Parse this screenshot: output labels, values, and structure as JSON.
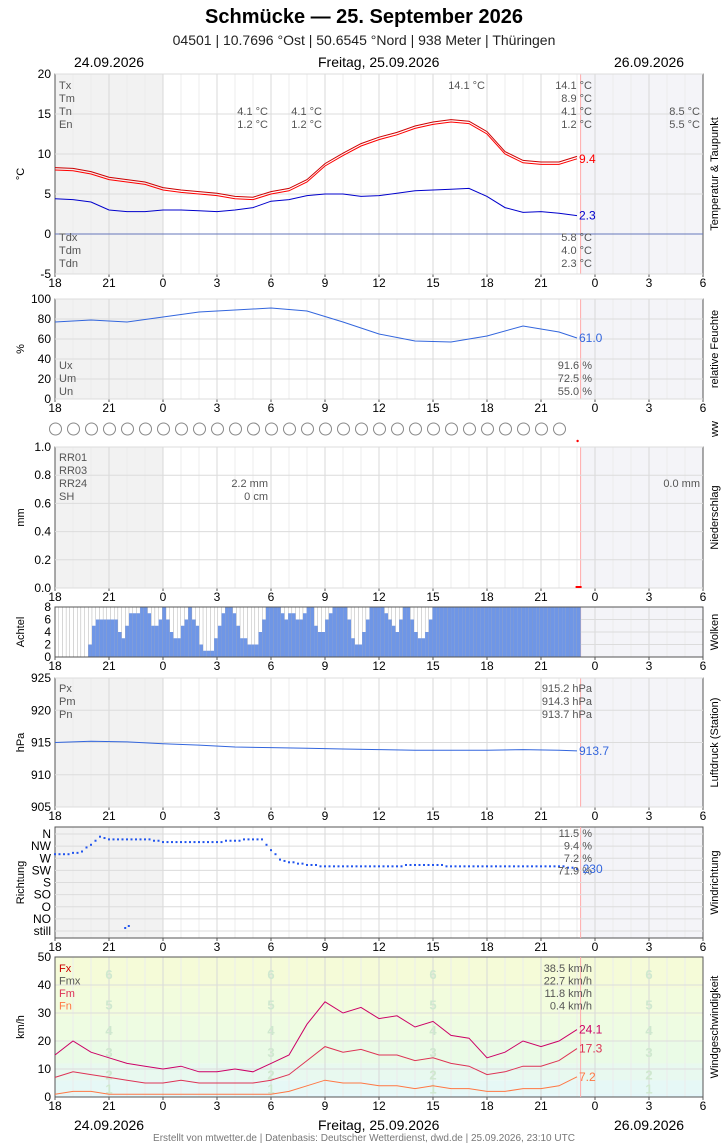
{
  "header": {
    "title": "Schmücke  —  25. September 2026",
    "subtitle": "04501  |  10.7696 °Ost  |  50.6545 °Nord  |  938 Meter  |  Thüringen"
  },
  "dates": {
    "prev": "24.09.2026",
    "current": "Freitag, 25.09.2026",
    "next": "26.09.2026"
  },
  "footer": "Erstellt von mtwetter.de | Datenbasis: Deutscher Wetterdienst, dwd.de | 25.09.2026, 23:10 UTC",
  "colors": {
    "red": "#ff0000",
    "darkred": "#cc0000",
    "blue": "#0000cc",
    "lightblue": "#3366dd",
    "magenta": "#cc0066",
    "cloud": "#6f96e6",
    "grid": "#dddddd",
    "nightbg": "#f3f3f3"
  },
  "chart_data": [
    {
      "id": "temperature",
      "type": "line",
      "ylabel": "°C",
      "side_label": "Temperatur & Taupunkt",
      "ylim": [
        -5,
        20
      ],
      "yticks": [
        "-5",
        "0",
        "5",
        "10",
        "15",
        "20"
      ],
      "xticks": [
        "18",
        "21",
        "0",
        "3",
        "6",
        "9",
        "12",
        "15",
        "18",
        "21",
        "0",
        "3",
        "6"
      ],
      "stats_left": [
        {
          "label": "Tx",
          "d1": "",
          "d2": "",
          "d3": "14.1 °C",
          "d4": "14.1 °C",
          "d5": ""
        },
        {
          "label": "Tm",
          "d1": "",
          "d2": "",
          "d3": "",
          "d4": "8.9 °C",
          "d5": ""
        },
        {
          "label": "Tn",
          "d1": "4.1 °C",
          "d2": "4.1 °C",
          "d3": "",
          "d4": "4.1 °C",
          "d5": "8.5 °C"
        },
        {
          "label": "En",
          "d1": "1.2 °C",
          "d2": "1.2 °C",
          "d3": "",
          "d4": "1.2 °C",
          "d5": "5.5 °C"
        }
      ],
      "stats_bottom": [
        {
          "label": "Tdx",
          "value": "5.8 °C"
        },
        {
          "label": "Tdm",
          "value": "4.0 °C"
        },
        {
          "label": "Tdn",
          "value": "2.3 °C"
        }
      ],
      "series": [
        {
          "name": "T",
          "color": "#ff0000",
          "last_label": "9.4",
          "x": [
            0,
            1,
            2,
            3,
            4,
            5,
            6,
            7,
            8,
            9,
            10,
            11,
            12,
            13,
            14,
            15,
            16,
            17,
            18,
            19,
            20,
            21,
            22,
            23,
            24,
            25,
            26,
            27,
            28,
            29
          ],
          "values": [
            8.0,
            7.9,
            7.5,
            6.8,
            6.5,
            6.2,
            5.5,
            5.2,
            5.0,
            4.8,
            4.4,
            4.3,
            5.0,
            5.4,
            6.5,
            8.5,
            9.8,
            11.0,
            11.8,
            12.4,
            13.2,
            13.7,
            14.0,
            13.8,
            12.5,
            10.0,
            8.9,
            8.7,
            8.7,
            9.4
          ]
        },
        {
          "name": "Td",
          "color": "#0000cc",
          "last_label": "2.3",
          "x": [
            0,
            1,
            2,
            3,
            4,
            5,
            6,
            7,
            8,
            9,
            10,
            11,
            12,
            13,
            14,
            15,
            16,
            17,
            18,
            19,
            20,
            21,
            22,
            23,
            24,
            25,
            26,
            27,
            28,
            29
          ],
          "values": [
            4.4,
            4.3,
            4.0,
            3.0,
            2.8,
            2.8,
            3.0,
            3.0,
            2.9,
            2.8,
            3.0,
            3.3,
            4.1,
            4.3,
            4.8,
            5.0,
            5.0,
            4.7,
            4.8,
            5.1,
            5.4,
            5.5,
            5.6,
            5.7,
            4.7,
            3.3,
            2.7,
            2.8,
            2.6,
            2.3
          ]
        }
      ]
    },
    {
      "id": "humidity",
      "type": "line",
      "ylabel": "%",
      "side_label": "relative Feuchte",
      "ylim": [
        0,
        100
      ],
      "yticks": [
        "0",
        "20",
        "40",
        "60",
        "80",
        "100"
      ],
      "stats": [
        {
          "label": "Ux",
          "value": "91.6 %"
        },
        {
          "label": "Um",
          "value": "72.5 %"
        },
        {
          "label": "Un",
          "value": "55.0 %"
        }
      ],
      "series": [
        {
          "name": "U",
          "color": "#3366dd",
          "last_label": "61.0",
          "x": [
            0,
            2,
            4,
            6,
            8,
            10,
            12,
            14,
            16,
            18,
            20,
            22,
            24,
            26,
            28,
            29
          ],
          "values": [
            77,
            79,
            77,
            82,
            87,
            89,
            91,
            88,
            77,
            65,
            58,
            57,
            63,
            73,
            67,
            61
          ]
        }
      ]
    },
    {
      "id": "ww",
      "type": "table",
      "side_label": "ww",
      "symbol_count": 29
    },
    {
      "id": "precip",
      "type": "bar",
      "ylabel": "mm",
      "side_label": "Niederschlag",
      "ylim": [
        0,
        1
      ],
      "yticks": [
        "0.0",
        "0.2",
        "0.4",
        "0.6",
        "0.8",
        "1.0"
      ],
      "stats": [
        {
          "label": "RR01",
          "value": ""
        },
        {
          "label": "RR03",
          "value": ""
        },
        {
          "label": "RR24",
          "value": "2.2 mm",
          "next": "0.0 mm"
        },
        {
          "label": "SH",
          "value": "0 cm"
        }
      ],
      "values": [
        0.0
      ]
    },
    {
      "id": "clouds",
      "type": "bar",
      "ylabel": "Achtel",
      "side_label": "Wolken",
      "ylim": [
        0,
        8
      ],
      "yticks": [
        "0",
        "2",
        "4",
        "6",
        "8"
      ],
      "values": [
        8,
        8,
        8,
        8,
        8,
        8,
        8,
        8,
        8,
        6,
        3,
        2,
        2,
        2,
        2,
        2,
        2,
        4,
        5,
        3,
        1,
        1,
        1,
        0,
        0,
        1,
        3,
        3,
        2,
        0,
        2,
        4,
        5,
        5,
        3,
        2,
        0,
        2,
        3,
        6,
        7,
        7,
        7,
        5,
        3,
        1,
        0,
        0,
        1,
        3,
        5,
        5,
        6,
        6,
        6,
        4,
        2,
        0,
        0,
        0,
        0,
        1,
        2,
        1,
        1,
        2,
        2,
        1,
        0,
        0,
        3,
        4,
        4,
        2,
        1,
        0,
        0,
        0,
        0,
        2,
        5,
        6,
        6,
        4,
        2,
        0,
        0,
        0,
        0,
        1,
        2,
        3,
        4,
        2,
        0,
        0,
        2,
        4,
        5,
        5,
        4,
        2,
        0,
        0,
        0,
        0,
        0,
        0,
        0,
        0,
        0,
        0,
        0,
        0,
        0,
        0,
        0,
        0,
        0,
        0,
        0,
        0,
        0,
        0,
        0,
        0,
        0,
        0,
        0,
        0,
        0,
        0,
        0,
        0,
        0,
        0,
        0,
        0,
        0,
        0,
        0,
        0
      ]
    },
    {
      "id": "pressure",
      "type": "line",
      "ylabel": "hPa",
      "side_label": "Luftdruck (Station)",
      "ylim": [
        905,
        925
      ],
      "yticks": [
        "905",
        "910",
        "915",
        "920",
        "925"
      ],
      "stats": [
        {
          "label": "Px",
          "value": "915.2 hPa"
        },
        {
          "label": "Pm",
          "value": "914.3 hPa"
        },
        {
          "label": "Pn",
          "value": "913.7 hPa"
        }
      ],
      "series": [
        {
          "name": "P",
          "color": "#3366dd",
          "last_label": "913.7",
          "x": [
            0,
            2,
            4,
            6,
            8,
            10,
            12,
            14,
            16,
            18,
            20,
            22,
            24,
            26,
            28,
            29
          ],
          "values": [
            915.0,
            915.2,
            915.1,
            914.8,
            914.6,
            914.3,
            914.2,
            914.1,
            914.0,
            913.9,
            913.8,
            913.8,
            913.8,
            913.9,
            913.8,
            913.7
          ]
        }
      ]
    },
    {
      "id": "winddir",
      "type": "scatter",
      "ylabel": "Richtung",
      "side_label": "Windrichtung",
      "ycats": [
        "N",
        "NW",
        "W",
        "SW",
        "S",
        "SO",
        "O",
        "NO",
        "still"
      ],
      "stats": [
        "11.5 %",
        "9.4 %",
        "7.2 %",
        "71.9 %"
      ],
      "last_label": "230",
      "x": [
        0,
        0.5,
        1,
        1.5,
        2,
        2.5,
        3,
        4,
        5,
        6,
        7,
        8,
        9,
        10,
        11,
        11.5,
        12,
        12.5,
        13,
        14,
        15,
        16,
        17,
        18,
        19,
        20,
        21,
        22,
        23,
        24,
        25,
        26,
        27,
        28,
        29
      ],
      "values": [
        283,
        285,
        288,
        295,
        320,
        350,
        340,
        340,
        340,
        330,
        330,
        330,
        330,
        335,
        340,
        340,
        300,
        265,
        255,
        245,
        240,
        240,
        240,
        240,
        240,
        245,
        245,
        240,
        240,
        240,
        240,
        240,
        240,
        240,
        230
      ]
    },
    {
      "id": "wind",
      "type": "line",
      "ylabel": "km/h",
      "side_label": "Windgeschwindigkeit",
      "ylim": [
        0,
        50
      ],
      "yticks": [
        "0",
        "10",
        "20",
        "30",
        "40",
        "50"
      ],
      "stats": [
        {
          "label": "Fx",
          "value": "38.5 km/h"
        },
        {
          "label": "Fmx",
          "value": "22.7 km/h"
        },
        {
          "label": "Fm",
          "value": "11.8 km/h"
        },
        {
          "label": "Fn",
          "value": "0.4 km/h"
        }
      ],
      "bft": [
        "1",
        "2",
        "3",
        "4",
        "5",
        "6"
      ],
      "series": [
        {
          "name": "Fx",
          "color": "#cc0066",
          "last_label": "24.1",
          "x": [
            0,
            1,
            2,
            3,
            4,
            5,
            6,
            7,
            8,
            9,
            10,
            11,
            12,
            13,
            14,
            15,
            16,
            17,
            18,
            19,
            20,
            21,
            22,
            23,
            24,
            25,
            26,
            27,
            28,
            29
          ],
          "values": [
            15,
            20,
            16,
            14,
            12,
            11,
            10,
            11,
            9,
            9,
            10,
            9,
            12,
            15,
            26,
            34,
            30,
            32,
            28,
            29,
            25,
            27,
            22,
            21,
            14,
            16,
            20,
            18,
            20,
            24.1
          ]
        },
        {
          "name": "Fm",
          "color": "#dd3355",
          "last_label": "17.3",
          "x": [
            0,
            1,
            2,
            3,
            4,
            5,
            6,
            7,
            8,
            9,
            10,
            11,
            12,
            13,
            14,
            15,
            16,
            17,
            18,
            19,
            20,
            21,
            22,
            23,
            24,
            25,
            26,
            27,
            28,
            29
          ],
          "values": [
            7,
            9,
            8,
            7,
            6,
            5,
            5,
            6,
            5,
            5,
            5,
            5,
            6,
            8,
            13,
            18,
            16,
            17,
            15,
            15,
            13,
            14,
            12,
            11,
            8,
            9,
            11,
            11,
            13,
            17.3
          ]
        },
        {
          "name": "Fn",
          "color": "#ff7744",
          "last_label": "7.2",
          "x": [
            0,
            1,
            2,
            3,
            4,
            5,
            6,
            7,
            8,
            9,
            10,
            11,
            12,
            13,
            14,
            15,
            16,
            17,
            18,
            19,
            20,
            21,
            22,
            23,
            24,
            25,
            26,
            27,
            28,
            29
          ],
          "values": [
            1,
            2,
            2,
            1,
            1,
            1,
            1,
            1,
            1,
            1,
            1,
            1,
            1,
            2,
            4,
            6,
            5,
            5,
            4,
            4,
            3,
            4,
            3,
            3,
            2,
            2,
            3,
            3,
            4,
            7.2
          ]
        }
      ]
    }
  ]
}
